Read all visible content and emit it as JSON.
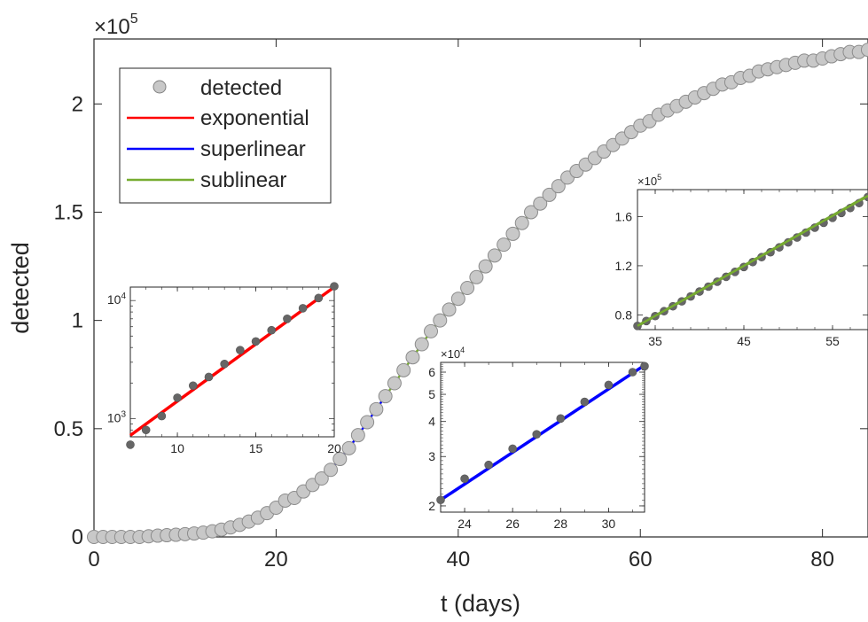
{
  "chart_data": {
    "type": "scatter",
    "xlabel": "t (days)",
    "ylabel": "detected",
    "xlim": [
      0,
      85
    ],
    "ylim": [
      0,
      2.3
    ],
    "y_multiplier_label": "×10",
    "y_multiplier_exp": "5",
    "xticks": [
      0,
      20,
      40,
      60,
      80
    ],
    "xtick_labels": [
      "0",
      "20",
      "40",
      "60",
      "80"
    ],
    "yticks": [
      0,
      0.5,
      1,
      1.5,
      2
    ],
    "ytick_labels": [
      "0",
      "0.5",
      "1",
      "1.5",
      "2"
    ],
    "grid": false,
    "legend_position": "top-left",
    "legend": {
      "detected": "detected",
      "exponential": "exponential",
      "superlinear": "superlinear",
      "sublinear": "sublinear"
    },
    "colors": {
      "points": "#c8c8c8",
      "exponential": "#ff0000",
      "superlinear": "#0000ff",
      "sublinear": "#77ac30",
      "inset_points": "#666666"
    },
    "detected_series": {
      "name": "detected",
      "x": [
        0,
        1,
        2,
        3,
        4,
        5,
        6,
        7,
        8,
        9,
        10,
        11,
        12,
        13,
        14,
        15,
        16,
        17,
        18,
        19,
        20,
        21,
        22,
        23,
        24,
        25,
        26,
        27,
        28,
        29,
        30,
        31,
        32,
        33,
        34,
        35,
        36,
        37,
        38,
        39,
        40,
        41,
        42,
        43,
        44,
        45,
        46,
        47,
        48,
        49,
        50,
        51,
        52,
        53,
        54,
        55,
        56,
        57,
        58,
        59,
        60,
        61,
        62,
        63,
        64,
        65,
        66,
        67,
        68,
        69,
        70,
        71,
        72,
        73,
        74,
        75,
        76,
        77,
        78,
        79,
        80,
        81,
        82,
        83,
        84,
        85
      ],
      "y": [
        0.0,
        0.0,
        0.0,
        0.0,
        0.0,
        0.0,
        0.003,
        0.006,
        0.008,
        0.01,
        0.013,
        0.016,
        0.02,
        0.026,
        0.034,
        0.044,
        0.056,
        0.071,
        0.089,
        0.11,
        0.135,
        0.168,
        0.18,
        0.21,
        0.24,
        0.27,
        0.31,
        0.36,
        0.41,
        0.47,
        0.53,
        0.59,
        0.65,
        0.71,
        0.77,
        0.83,
        0.89,
        0.95,
        1.0,
        1.05,
        1.1,
        1.15,
        1.2,
        1.25,
        1.3,
        1.35,
        1.4,
        1.45,
        1.5,
        1.54,
        1.58,
        1.62,
        1.66,
        1.69,
        1.72,
        1.75,
        1.78,
        1.81,
        1.84,
        1.87,
        1.9,
        1.92,
        1.95,
        1.97,
        1.99,
        2.01,
        2.03,
        2.05,
        2.07,
        2.09,
        2.1,
        2.12,
        2.13,
        2.15,
        2.16,
        2.17,
        2.18,
        2.19,
        2.2,
        2.2,
        2.21,
        2.22,
        2.23,
        2.24,
        2.24,
        2.25
      ]
    },
    "fits": [
      {
        "name": "exponential",
        "x_range": [
          0,
          21
        ]
      },
      {
        "name": "superlinear",
        "x_range": [
          21,
          32
        ]
      },
      {
        "name": "sublinear",
        "x_range": [
          32,
          78
        ]
      }
    ],
    "insets": [
      {
        "id": "exponential",
        "scale": "log",
        "xlim": [
          7,
          20
        ],
        "ylim": [
          700,
          13000
        ],
        "xticks": [
          10,
          15,
          20
        ],
        "xtick_labels": [
          "10",
          "15",
          "20"
        ],
        "ytick_labels": [
          {
            "base": "10",
            "exp": "3",
            "value": 1000
          },
          {
            "base": "10",
            "exp": "4",
            "value": 10000
          }
        ],
        "points_x": [
          7,
          8,
          9,
          10,
          11,
          12,
          13,
          14,
          15,
          16,
          17,
          18,
          19,
          20
        ],
        "points_y": [
          600,
          800,
          1050,
          1500,
          1900,
          2250,
          2900,
          3800,
          4500,
          5600,
          7000,
          8600,
          10500,
          13200
        ],
        "fit": [
          [
            7,
            720
          ],
          [
            20,
            13000
          ]
        ],
        "color": "#ff0000"
      },
      {
        "id": "superlinear",
        "scale": "log",
        "xlim": [
          23,
          31.5
        ],
        "ylim": [
          19000,
          65000
        ],
        "xticks": [
          24,
          26,
          28,
          30
        ],
        "xtick_labels": [
          "24",
          "26",
          "28",
          "30"
        ],
        "yticks": [
          20000,
          30000,
          40000,
          50000,
          60000
        ],
        "ytick_labels": [
          "2",
          "3",
          "4",
          "5",
          "6"
        ],
        "multiplier_label": "×10",
        "multiplier_exp": "4",
        "points_x": [
          23,
          24,
          25,
          26,
          27,
          28,
          29,
          30,
          31,
          31.5
        ],
        "points_y": [
          21000,
          25000,
          28000,
          32000,
          36000,
          41000,
          47000,
          54000,
          60000,
          63000
        ],
        "fit": [
          [
            23,
            21000
          ],
          [
            31.5,
            63500
          ]
        ],
        "color": "#0000ff"
      },
      {
        "id": "sublinear",
        "scale": "linear",
        "xlim": [
          33,
          59
        ],
        "ylim": [
          0.68,
          1.82
        ],
        "xticks": [
          35,
          45,
          55
        ],
        "xtick_labels": [
          "35",
          "45",
          "55"
        ],
        "yticks": [
          0.8,
          1.2,
          1.6
        ],
        "ytick_labels": [
          "0.8",
          "1.2",
          "1.6"
        ],
        "multiplier_label": "×10",
        "multiplier_exp": "5",
        "points_x": [
          33,
          34,
          35,
          36,
          37,
          38,
          39,
          40,
          41,
          42,
          43,
          44,
          45,
          46,
          47,
          48,
          49,
          50,
          51,
          52,
          53,
          54,
          55,
          56,
          57,
          58,
          59
        ],
        "points_y": [
          0.71,
          0.75,
          0.79,
          0.83,
          0.87,
          0.91,
          0.95,
          0.99,
          1.03,
          1.07,
          1.11,
          1.15,
          1.19,
          1.23,
          1.27,
          1.31,
          1.35,
          1.39,
          1.43,
          1.47,
          1.51,
          1.55,
          1.59,
          1.63,
          1.67,
          1.71,
          1.76
        ],
        "fit": [
          [
            33,
            0.71
          ],
          [
            59,
            1.77
          ]
        ],
        "color": "#77ac30"
      }
    ]
  }
}
